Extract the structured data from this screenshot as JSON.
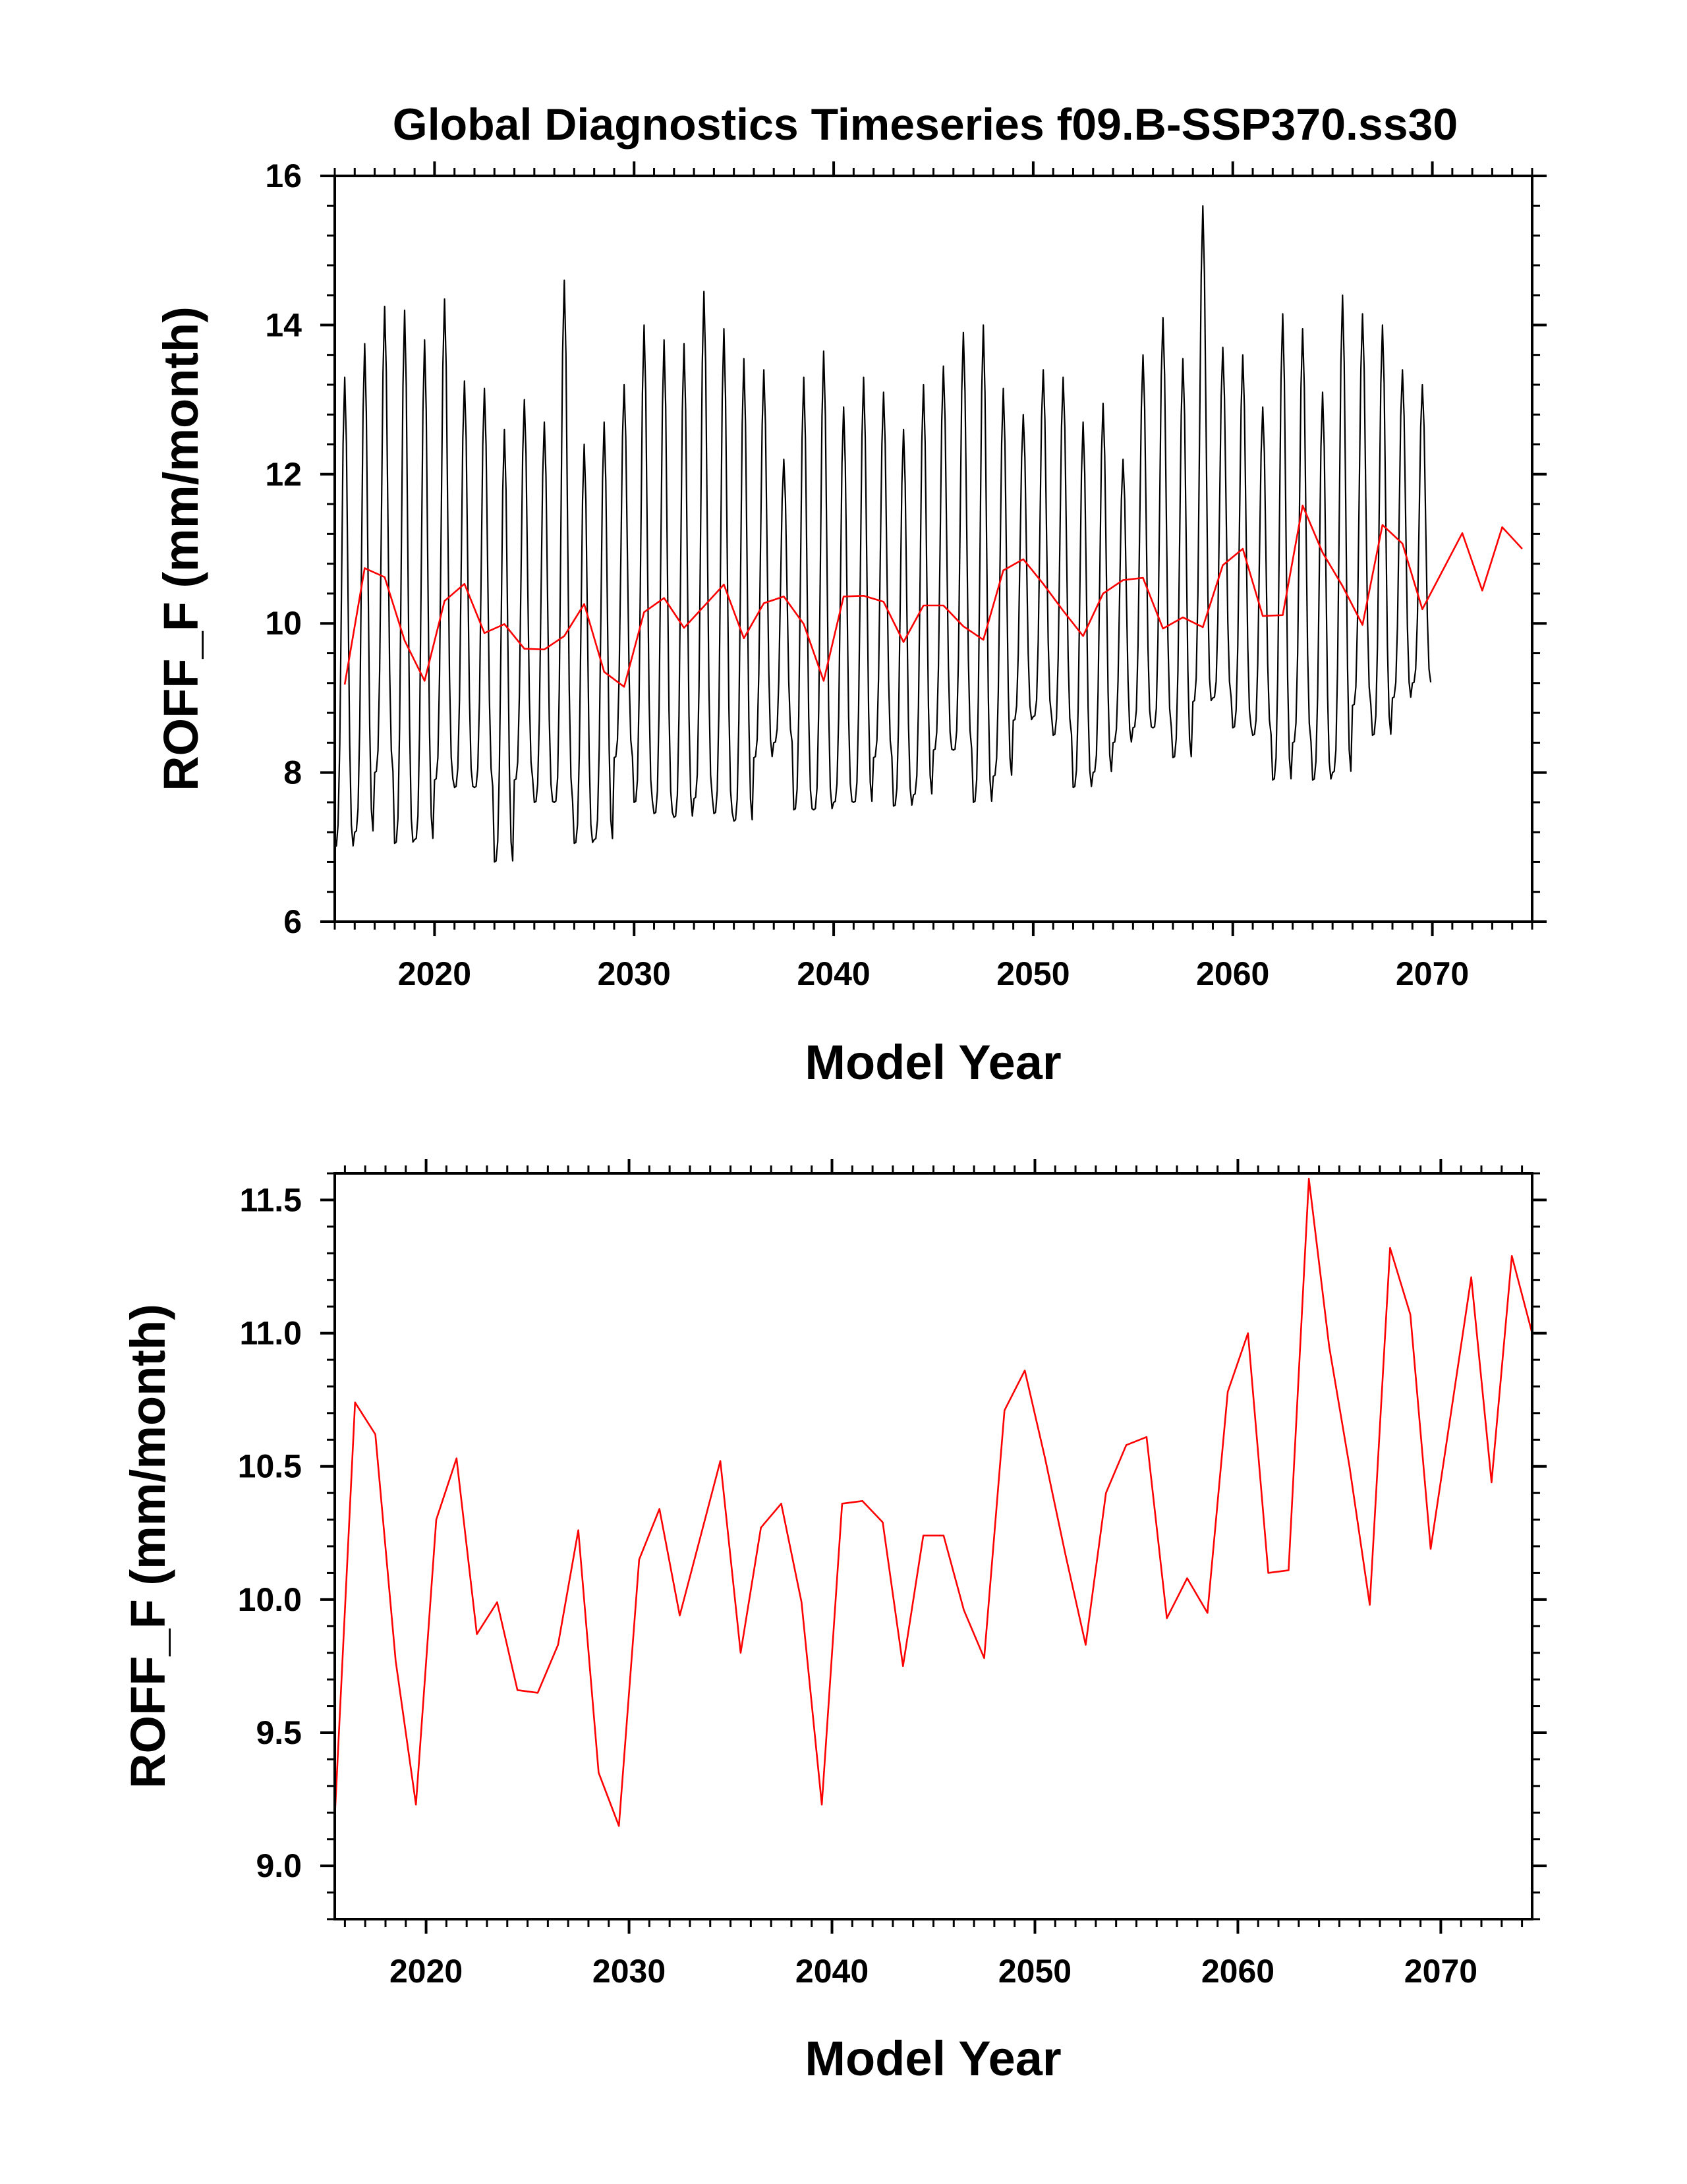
{
  "page_title": "Global Diagnostics Timeseries f09.B-SSP370.ss30",
  "colors": {
    "monthly": "#000000",
    "annual": "#ff0000",
    "axes": "#000000"
  },
  "chart_data": [
    {
      "type": "line",
      "title": "Global Diagnostics Timeseries f09.B-SSP370.ss30",
      "xlabel": "Model Year",
      "ylabel": "ROFF_F (mm/month)",
      "xlim": [
        2015,
        2075
      ],
      "ylim": [
        6,
        16
      ],
      "x_ticks": [
        2020,
        2030,
        2040,
        2050,
        2060,
        2070
      ],
      "x_tick_labels": [
        "2020",
        "2030",
        "2040",
        "2050",
        "2060",
        "2070"
      ],
      "y_ticks": [
        6,
        8,
        10,
        12,
        14,
        16
      ],
      "y_tick_labels": [
        "6",
        "8",
        "10",
        "12",
        "14",
        "16"
      ],
      "grid": false,
      "series": [
        {
          "color": "#000000",
          "x_start": 2015.0,
          "x_step": 0.0833333,
          "note_values_monthly": true,
          "peaks": [
            13.3,
            13.75,
            14.25,
            14.2,
            13.8,
            14.35,
            13.25,
            13.15,
            12.6,
            13.0,
            12.7,
            14.6,
            12.4,
            12.7,
            13.2,
            14.0,
            13.8,
            13.75,
            14.45,
            13.95,
            13.55,
            13.4,
            12.2,
            13.3,
            13.65,
            12.9,
            13.3,
            13.1,
            12.6,
            13.2,
            13.45,
            13.9,
            14.0,
            13.15,
            12.8,
            13.4,
            13.3,
            12.7,
            12.95,
            12.2,
            13.6,
            14.1,
            13.55,
            15.6,
            13.7,
            13.6,
            12.9,
            14.15,
            13.95,
            13.1,
            14.4,
            14.15,
            14.0,
            13.4,
            13.2
          ],
          "troughs": [
            7.0,
            7.2,
            8.0,
            7.05,
            7.1,
            7.9,
            7.8,
            7.8,
            6.8,
            7.9,
            7.6,
            7.6,
            7.05,
            7.1,
            8.2,
            7.6,
            7.45,
            7.4,
            7.65,
            7.45,
            7.35,
            8.2,
            8.4,
            7.5,
            7.5,
            7.6,
            7.6,
            8.2,
            7.55,
            7.7,
            8.3,
            8.3,
            7.6,
            7.95,
            8.7,
            8.75,
            8.5,
            7.8,
            8.0,
            8.4,
            8.6,
            8.6,
            8.2,
            8.95,
            9.0,
            8.6,
            8.5,
            7.9,
            8.4,
            7.9,
            8.0,
            8.9,
            8.5,
            9.0,
            9.2
          ]
        },
        {
          "name": "",
          "color": "#ff0000",
          "x": [
            2015.5,
            2016.5,
            2017.5,
            2018.5,
            2019.5,
            2020.5,
            2021.5,
            2022.5,
            2023.5,
            2024.5,
            2025.5,
            2026.5,
            2027.5,
            2028.5,
            2029.5,
            2030.5,
            2031.5,
            2032.5,
            2033.5,
            2034.5,
            2035.5,
            2036.5,
            2037.5,
            2038.5,
            2039.5,
            2040.5,
            2041.5,
            2042.5,
            2043.5,
            2044.5,
            2045.5,
            2046.5,
            2047.5,
            2048.5,
            2049.5,
            2050.5,
            2051.5,
            2052.5,
            2053.5,
            2054.5,
            2055.5,
            2056.5,
            2057.5,
            2058.5,
            2059.5,
            2060.5,
            2061.5,
            2062.5,
            2063.5,
            2064.5,
            2065.5,
            2066.5,
            2067.5,
            2068.5,
            2069.5,
            2070.5,
            2071.5,
            2072.5,
            2073.5,
            2074.5
          ],
          "values": [
            9.18,
            10.74,
            10.62,
            9.77,
            9.23,
            10.3,
            10.53,
            9.87,
            9.99,
            9.66,
            9.65,
            9.83,
            10.26,
            9.35,
            9.15,
            10.15,
            10.34,
            9.94,
            10.23,
            10.52,
            9.8,
            10.27,
            10.36,
            9.99,
            9.23,
            10.36,
            10.37,
            10.29,
            9.75,
            10.24,
            10.24,
            9.96,
            9.78,
            10.71,
            10.86,
            10.53,
            10.17,
            9.83,
            10.4,
            10.58,
            10.61,
            9.93,
            10.08,
            9.95,
            10.78,
            11.0,
            10.1,
            10.11,
            11.58,
            10.95,
            10.5,
            9.98,
            11.32,
            11.07,
            10.19,
            10.7,
            11.21,
            10.44,
            11.29,
            11.0
          ]
        }
      ]
    },
    {
      "type": "line",
      "title": "",
      "xlabel": "Model Year",
      "ylabel": "ROFF_F (mm/month)",
      "xlim": [
        2015.5,
        2074.5
      ],
      "ylim": [
        8.8,
        11.6
      ],
      "x_ticks": [
        2020,
        2030,
        2040,
        2050,
        2060,
        2070
      ],
      "x_tick_labels": [
        "2020",
        "2030",
        "2040",
        "2050",
        "2060",
        "2070"
      ],
      "y_ticks": [
        9.0,
        9.5,
        10.0,
        10.5,
        11.0,
        11.5
      ],
      "y_tick_labels": [
        "9.0",
        "9.5",
        "10.0",
        "10.5",
        "11.0",
        "11.5"
      ],
      "grid": false,
      "series": [
        {
          "name": "",
          "color": "#ff0000",
          "x": [
            2015.5,
            2016.5,
            2017.5,
            2018.5,
            2019.5,
            2020.5,
            2021.5,
            2022.5,
            2023.5,
            2024.5,
            2025.5,
            2026.5,
            2027.5,
            2028.5,
            2029.5,
            2030.5,
            2031.5,
            2032.5,
            2033.5,
            2034.5,
            2035.5,
            2036.5,
            2037.5,
            2038.5,
            2039.5,
            2040.5,
            2041.5,
            2042.5,
            2043.5,
            2044.5,
            2045.5,
            2046.5,
            2047.5,
            2048.5,
            2049.5,
            2050.5,
            2051.5,
            2052.5,
            2053.5,
            2054.5,
            2055.5,
            2056.5,
            2057.5,
            2058.5,
            2059.5,
            2060.5,
            2061.5,
            2062.5,
            2063.5,
            2064.5,
            2065.5,
            2066.5,
            2067.5,
            2068.5,
            2069.5,
            2070.5,
            2071.5,
            2072.5,
            2073.5,
            2074.5
          ],
          "values": [
            9.18,
            10.74,
            10.62,
            9.77,
            9.23,
            10.3,
            10.53,
            9.87,
            9.99,
            9.66,
            9.65,
            9.83,
            10.26,
            9.35,
            9.15,
            10.15,
            10.34,
            9.94,
            10.23,
            10.52,
            9.8,
            10.27,
            10.36,
            9.99,
            9.23,
            10.36,
            10.37,
            10.29,
            9.75,
            10.24,
            10.24,
            9.96,
            9.78,
            10.71,
            10.86,
            10.53,
            10.17,
            9.83,
            10.4,
            10.58,
            10.61,
            9.93,
            10.08,
            9.95,
            10.78,
            11.0,
            10.1,
            10.11,
            11.58,
            10.95,
            10.5,
            9.98,
            11.32,
            11.07,
            10.19,
            10.7,
            11.21,
            10.44,
            11.29,
            11.0
          ]
        }
      ]
    }
  ]
}
